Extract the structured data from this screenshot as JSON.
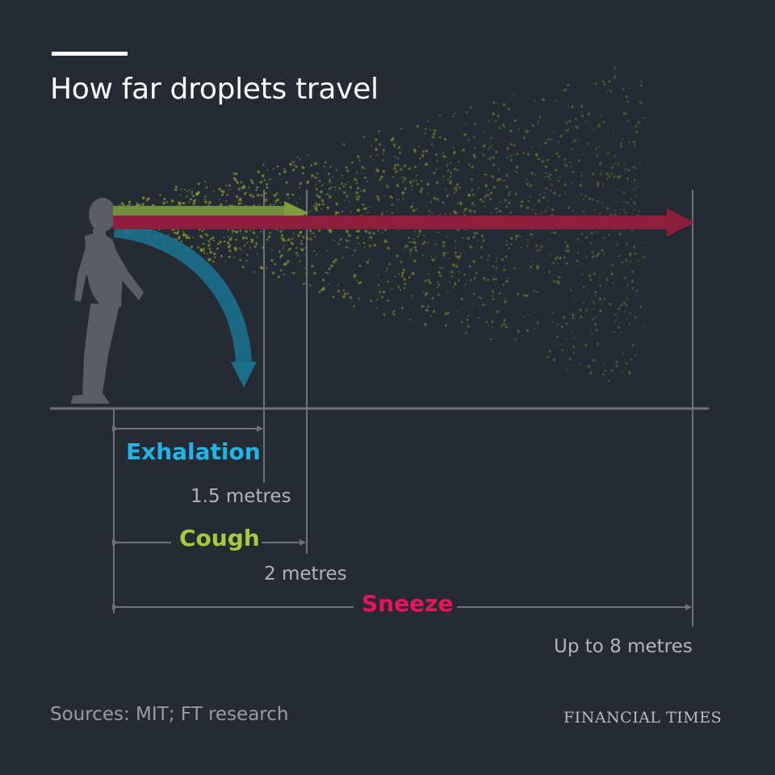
{
  "title": "How far droplets travel",
  "colors": {
    "background": "#262a33",
    "exhalation": "#1fb6e6",
    "cough": "#a9c93a",
    "sneeze": "#d6134f",
    "droplets": "#8da333",
    "axis": "#6e7178",
    "figure": "#5a5d63"
  },
  "measures": [
    {
      "id": "exhalation",
      "label": "Exhalation",
      "distance_m": 1.5,
      "distance_label": "1.5 metres"
    },
    {
      "id": "cough",
      "label": "Cough",
      "distance_m": 2,
      "distance_label": "2 metres"
    },
    {
      "id": "sneeze",
      "label": "Sneeze",
      "distance_m": 8,
      "distance_label": "Up to 8 metres"
    }
  ],
  "source": "Sources: MIT; FT research",
  "brand": "FINANCIAL TIMES"
}
